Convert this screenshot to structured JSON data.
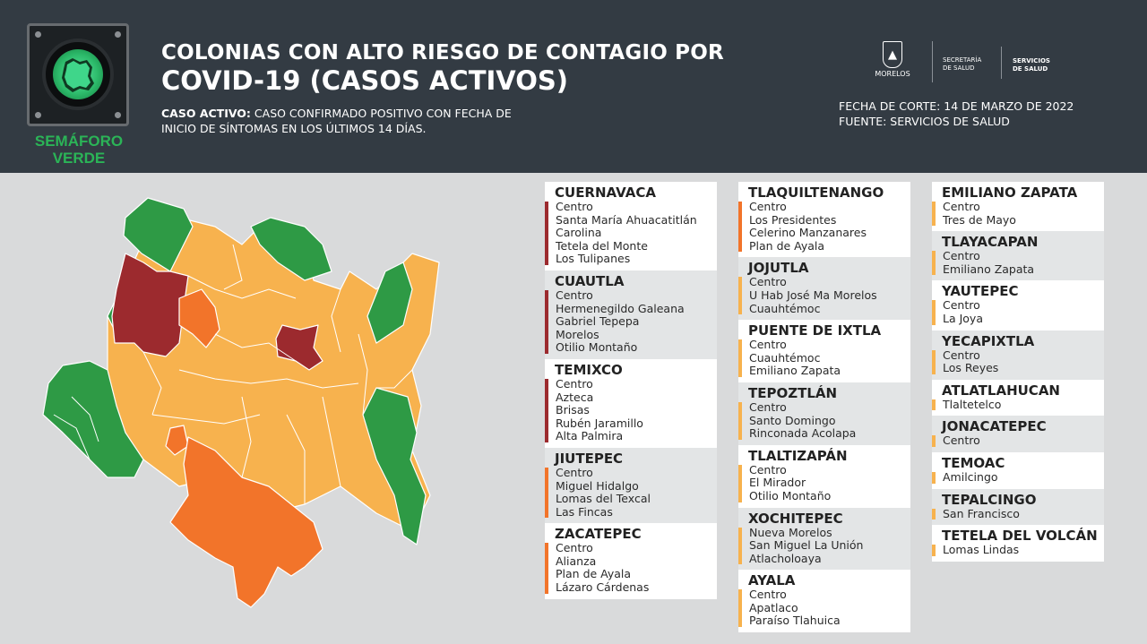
{
  "header": {
    "semaforo_label_1": "SEMÁFORO",
    "semaforo_label_2": "VERDE",
    "title_line1": "COLONIAS CON ALTO RIESGO DE CONTAGIO POR",
    "title_line2": "COVID-19 (CASOS ACTIVOS)",
    "caso_label": "CASO ACTIVO:",
    "caso_text_1": " CASO CONFIRMADO POSITIVO CON FECHA DE",
    "caso_text_2": "INICIO DE SÍNTOMAS EN LOS ÚLTIMOS 14 DÍAS.",
    "fecha": "FECHA DE CORTE: 14 DE MARZO DE 2022",
    "fuente": "FUENTE: SERVICIOS DE SALUD",
    "logo_morelos": "MORELOS",
    "logo_secretaria_1": "SECRETARÍA",
    "logo_secretaria_2": "DE SALUD",
    "logo_servicios_1": "SERVICIOS",
    "logo_servicios_2": "DE SALUD"
  },
  "colors": {
    "red": "#9c2a2e",
    "orange": "#f2742a",
    "yellow": "#f7b24e",
    "green": "#2e9a45"
  },
  "columns": [
    [
      {
        "name": "CUERNAVACA",
        "risk": "red",
        "bg": "white",
        "items": [
          "Centro",
          "Santa María Ahuacatitlán",
          "Carolina",
          "Tetela del Monte",
          "Los Tulipanes"
        ]
      },
      {
        "name": "CUAUTLA",
        "risk": "red",
        "bg": "gray",
        "items": [
          "Centro",
          "Hermenegildo Galeana",
          "Gabriel Tepepa",
          "Morelos",
          "Otilio Montaño"
        ]
      },
      {
        "name": "TEMIXCO",
        "risk": "red",
        "bg": "white",
        "items": [
          "Centro",
          "Azteca",
          "Brisas",
          "Rubén Jaramillo",
          "Alta Palmira"
        ]
      },
      {
        "name": "JIUTEPEC",
        "risk": "orange",
        "bg": "gray",
        "items": [
          "Centro",
          "Miguel Hidalgo",
          "Lomas del Texcal",
          "Las Fincas"
        ]
      },
      {
        "name": "ZACATEPEC",
        "risk": "orange",
        "bg": "white",
        "items": [
          "Centro",
          "Alianza",
          "Plan de Ayala",
          "Lázaro Cárdenas"
        ]
      }
    ],
    [
      {
        "name": "TLAQUILTENANGO",
        "risk": "orange",
        "bg": "white",
        "items": [
          "Centro",
          "Los Presidentes",
          "Celerino Manzanares",
          "Plan de Ayala"
        ]
      },
      {
        "name": "JOJUTLA",
        "risk": "yellow",
        "bg": "gray",
        "items": [
          "Centro",
          "U Hab José Ma Morelos",
          "Cuauhtémoc"
        ]
      },
      {
        "name": "PUENTE DE IXTLA",
        "risk": "yellow",
        "bg": "white",
        "items": [
          "Centro",
          "Cuauhtémoc",
          "Emiliano Zapata"
        ]
      },
      {
        "name": "TEPOZTLÁN",
        "risk": "yellow",
        "bg": "gray",
        "items": [
          "Centro",
          "Santo Domingo",
          "Rinconada Acolapa"
        ]
      },
      {
        "name": "TLALTIZAPÁN",
        "risk": "yellow",
        "bg": "white",
        "items": [
          "Centro",
          "El Mirador",
          "Otilio Montaño"
        ]
      },
      {
        "name": "XOCHITEPEC",
        "risk": "yellow",
        "bg": "gray",
        "items": [
          "Nueva Morelos",
          "San Miguel La Unión",
          "Atlacholoaya"
        ]
      },
      {
        "name": "AYALA",
        "risk": "yellow",
        "bg": "white",
        "items": [
          "Centro",
          "Apatlaco",
          "Paraíso Tlahuica"
        ]
      }
    ],
    [
      {
        "name": "EMILIANO ZAPATA",
        "risk": "yellow",
        "bg": "white",
        "items": [
          "Centro",
          "Tres de Mayo"
        ]
      },
      {
        "name": "TLAYACAPAN",
        "risk": "yellow",
        "bg": "gray",
        "items": [
          "Centro",
          "Emiliano Zapata"
        ]
      },
      {
        "name": "YAUTEPEC",
        "risk": "yellow",
        "bg": "white",
        "items": [
          "Centro",
          "La Joya"
        ]
      },
      {
        "name": "YECAPIXTLA",
        "risk": "yellow",
        "bg": "gray",
        "items": [
          "Centro",
          "Los Reyes"
        ]
      },
      {
        "name": "ATLATLAHUCAN",
        "risk": "yellow",
        "bg": "white",
        "items": [
          "Tlaltetelco"
        ]
      },
      {
        "name": "JONACATEPEC",
        "risk": "yellow",
        "bg": "gray",
        "items": [
          "Centro"
        ]
      },
      {
        "name": "TEMOAC",
        "risk": "yellow",
        "bg": "white",
        "items": [
          "Amilcingo"
        ]
      },
      {
        "name": "TEPALCINGO",
        "risk": "yellow",
        "bg": "gray",
        "items": [
          "San Francisco"
        ]
      },
      {
        "name": "TETELA DEL VOLCÁN",
        "risk": "yellow",
        "bg": "white",
        "items": [
          "Lomas Lindas"
        ]
      }
    ]
  ]
}
